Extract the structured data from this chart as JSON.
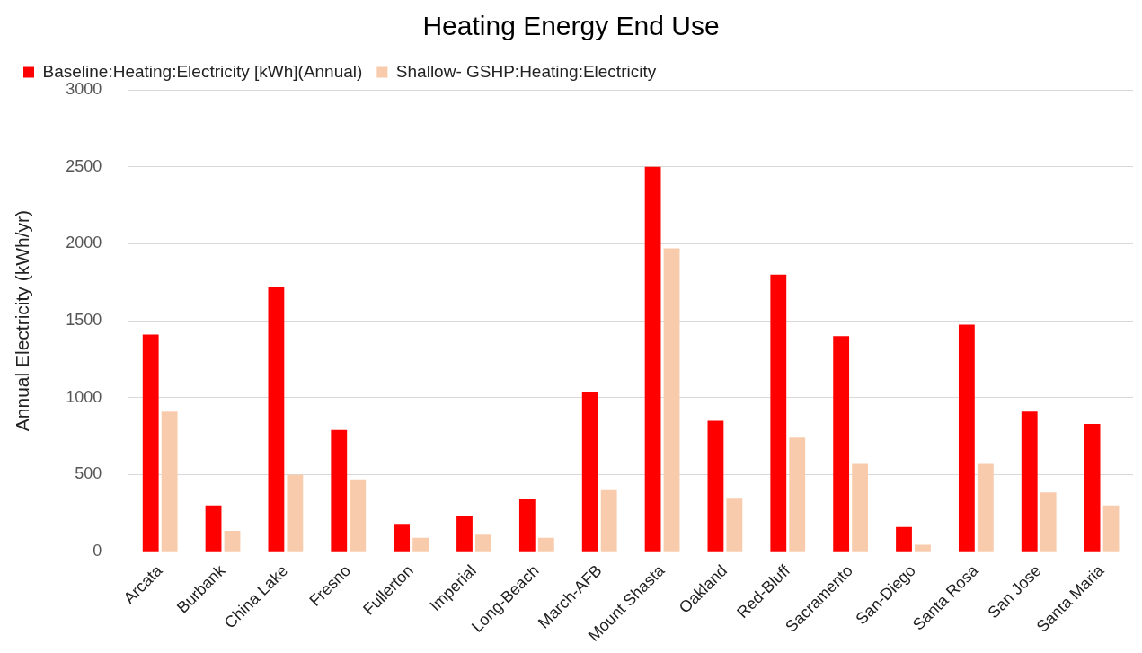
{
  "chart_data": {
    "type": "bar",
    "title": "Heating Energy End Use",
    "ylabel": "Annual Electricity (kWh/yr)",
    "categories": [
      "Arcata",
      "Burbank",
      "China Lake",
      "Fresno",
      "Fullerton",
      "Imperial",
      "Long-Beach",
      "March-AFB",
      "Mount Shasta",
      "Oakland",
      "Red-Bluff",
      "Sacramento",
      "San-Diego",
      "Santa Rosa",
      "San Jose",
      "Santa Maria"
    ],
    "series": [
      {
        "name": "Baseline:Heating:Electricity [kWh](Annual)",
        "color": "#ff0000",
        "values": [
          1410,
          300,
          1720,
          790,
          180,
          230,
          340,
          1040,
          2500,
          850,
          1800,
          1400,
          160,
          1475,
          910,
          830
        ]
      },
      {
        "name": "Shallow- GSHP:Heating:Electricity",
        "color": "#f8cbad",
        "values": [
          910,
          135,
          500,
          470,
          90,
          110,
          90,
          405,
          1970,
          350,
          740,
          570,
          45,
          570,
          385,
          300
        ]
      }
    ],
    "ylim": [
      0,
      3000
    ],
    "yticks": [
      0,
      500,
      1000,
      1500,
      2000,
      2500,
      3000
    ],
    "grid": "y",
    "legend": "top"
  }
}
